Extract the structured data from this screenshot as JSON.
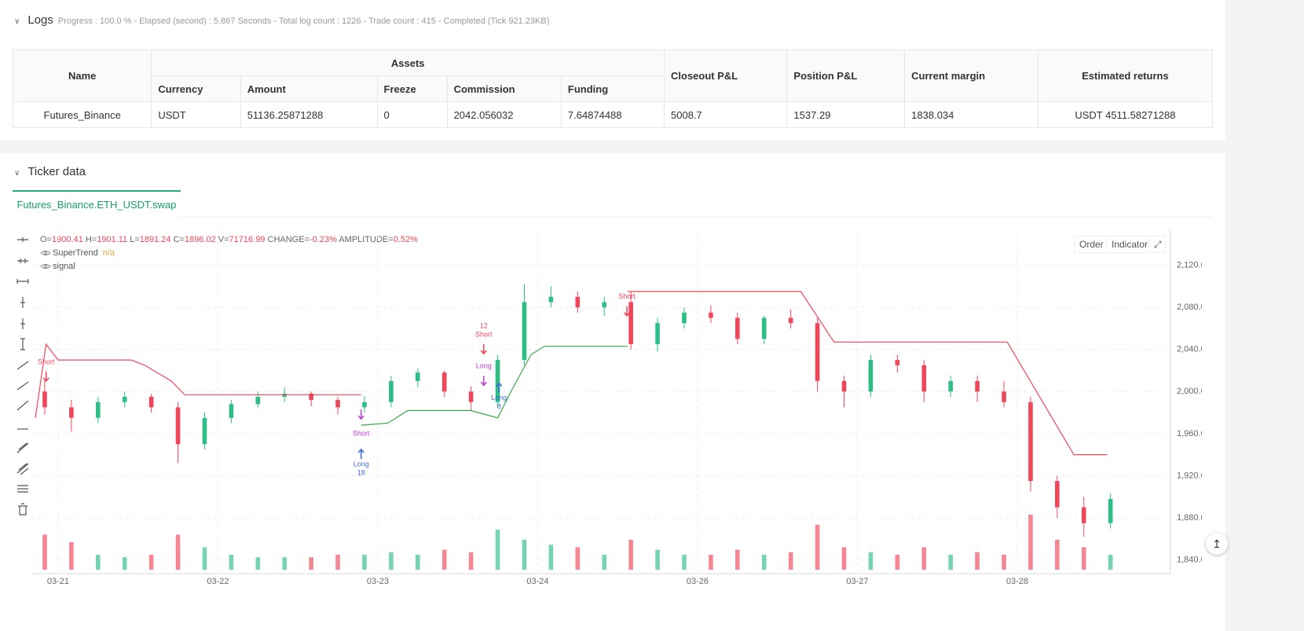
{
  "logs": {
    "title": "Logs",
    "status": "Progress : 100.0 % - Elapsed (second) : 5.867  Seconds - Total log count : 1226 - Trade count : 415 - Completed (Tick 921.23KB)"
  },
  "table": {
    "header_top": [
      "Name",
      "Assets",
      "Closeout P&L",
      "Position P&L",
      "Current margin",
      "Estimated returns"
    ],
    "header_sub": [
      "Currency",
      "Amount",
      "Freeze",
      "Commission",
      "Funding"
    ],
    "rows": [
      [
        "Futures_Binance",
        "USDT",
        "51136.25871288",
        "0",
        "2042.056032",
        "7.64874488",
        "5008.7",
        "1537.29",
        "1838.034",
        "USDT 4511.58271288"
      ]
    ]
  },
  "ticker": {
    "title": "Ticker data",
    "tab": "Futures_Binance.ETH_USDT.swap",
    "buttons": [
      "Order",
      "Indicator"
    ]
  },
  "chart_data": {
    "type": "candlestick",
    "ohlc_header": [
      [
        "O=",
        "1900.41"
      ],
      [
        "H=",
        "1901.11"
      ],
      [
        "L=",
        "1891.24"
      ],
      [
        "C=",
        "1896.02"
      ],
      [
        "V=",
        "71716.99"
      ],
      [
        "CHANGE=",
        "-0.23%"
      ],
      [
        "AMPLITUDE=",
        "0.52%"
      ]
    ],
    "legend": [
      {
        "name": "SuperTrend",
        "value": "n/a"
      },
      {
        "name": "signal"
      }
    ],
    "up_color": "#2dbd85",
    "down_color": "#f0465a",
    "grid": true,
    "xlim": [
      -4,
      167
    ],
    "ylim": [
      1827,
      2154
    ],
    "xticks": [
      {
        "value": 0,
        "label": "03-21"
      },
      {
        "value": 24,
        "label": "03-22"
      },
      {
        "value": 48,
        "label": "03-23"
      },
      {
        "value": 72,
        "label": "03-24"
      },
      {
        "value": 96,
        "label": "03-26"
      },
      {
        "value": 120,
        "label": "03-27"
      },
      {
        "value": 144,
        "label": "03-28"
      }
    ],
    "yticks": [
      {
        "value": 1840,
        "label": "1,840.00"
      },
      {
        "value": 1880,
        "label": "1,880.00"
      },
      {
        "value": 1920,
        "label": "1,920.00"
      },
      {
        "value": 1960,
        "label": "1,960.00"
      },
      {
        "value": 2000,
        "label": "2,000.00"
      },
      {
        "value": 2040,
        "label": "2,040.00"
      },
      {
        "value": 2080,
        "label": "2,080.00"
      },
      {
        "value": 2120,
        "label": "2,120.00"
      }
    ],
    "candles": {
      "x": [
        -2,
        2,
        6,
        10,
        14,
        18,
        22,
        26,
        30,
        34,
        38,
        42,
        46,
        50,
        54,
        58,
        62,
        66,
        70,
        74,
        78,
        82,
        86,
        90,
        94,
        98,
        102,
        106,
        110,
        114,
        118,
        122,
        126,
        130,
        134,
        138,
        142,
        146,
        150,
        154,
        158
      ],
      "open": [
        2000,
        1985,
        1975,
        1990,
        1995,
        1985,
        1950,
        1975,
        1988,
        1995,
        1998,
        1992,
        1985,
        1990,
        2010,
        2018,
        2000,
        1990,
        2030,
        2085,
        2090,
        2080,
        2085,
        2045,
        2065,
        2075,
        2070,
        2050,
        2070,
        2065,
        2010,
        2000,
        2030,
        2025,
        2000,
        2010,
        2000,
        1990,
        1915,
        1890,
        1875
      ],
      "high": [
        2012,
        1992,
        1995,
        2000,
        1998,
        1990,
        1980,
        1992,
        2000,
        2004,
        2000,
        1995,
        1996,
        2015,
        2022,
        2020,
        2005,
        2035,
        2102,
        2100,
        2095,
        2090,
        2095,
        2070,
        2080,
        2082,
        2075,
        2072,
        2078,
        2070,
        2015,
        2035,
        2035,
        2030,
        2015,
        2015,
        2010,
        1995,
        1920,
        1900,
        1903
      ],
      "low": [
        1978,
        1962,
        1970,
        1985,
        1980,
        1932,
        1945,
        1970,
        1985,
        1990,
        1986,
        1978,
        1980,
        1985,
        2004,
        1995,
        1982,
        1985,
        2025,
        2080,
        2075,
        2072,
        2040,
        2038,
        2060,
        2065,
        2045,
        2045,
        2060,
        2000,
        1985,
        1995,
        2018,
        1990,
        1995,
        1990,
        1985,
        1905,
        1880,
        1862,
        1870
      ],
      "close": [
        1985,
        1975,
        1990,
        1995,
        1985,
        1950,
        1975,
        1988,
        1995,
        1998,
        1992,
        1985,
        1990,
        2010,
        2018,
        2000,
        1990,
        2030,
        2085,
        2090,
        2080,
        2085,
        2045,
        2065,
        2075,
        2070,
        2050,
        2070,
        2065,
        2010,
        2000,
        2030,
        2025,
        2000,
        2010,
        2000,
        1990,
        1915,
        1890,
        1875,
        1898
      ],
      "volume": [
        14000,
        11000,
        6000,
        5000,
        6000,
        14000,
        9000,
        6000,
        5000,
        5000,
        5000,
        6000,
        6000,
        7000,
        6000,
        8000,
        7000,
        16000,
        12000,
        10000,
        9000,
        6000,
        12000,
        8000,
        6000,
        6000,
        8000,
        6000,
        7000,
        18000,
        9000,
        7000,
        6000,
        9000,
        6000,
        7000,
        6000,
        22000,
        12000,
        9000,
        6000
      ]
    },
    "lines": [
      {
        "color": "#f0465a",
        "x": [
          -3.4,
          -1.8,
          0,
          11,
          13,
          17,
          19,
          45.5,
          46,
          85.5,
          111.5,
          116.5,
          142.5,
          152.5,
          157.5
        ],
        "values": [
          1975,
          2045,
          2030,
          2030,
          2025,
          2010,
          1997,
          1997,
          null,
          2095,
          2095,
          2047,
          2047,
          1940,
          1940
        ]
      },
      {
        "color": "#3aa845",
        "x": [
          45.5,
          49.5,
          52.5,
          61.9,
          66,
          68,
          71,
          73,
          85.5
        ],
        "values": [
          1968,
          1970,
          1982,
          1982,
          1975,
          2000,
          2035,
          2043,
          2043
        ]
      }
    ],
    "annotations": [
      {
        "lines": [
          "Short"
        ],
        "x": -1.8,
        "y": 2010,
        "color": "#f0465a",
        "arrow": "down",
        "text_pos": "above"
      },
      {
        "lines": [
          "Short"
        ],
        "x": 45.5,
        "y": 1974,
        "color": "#c03fd8",
        "arrow": "down",
        "text_pos": "below"
      },
      {
        "lines": [
          "Long",
          "18"
        ],
        "x": 45.5,
        "y": 1945,
        "color": "#3f6fd8",
        "arrow": "up",
        "text_pos": "below"
      },
      {
        "lines": [
          "12",
          "Short"
        ],
        "x": 63.9,
        "y": 2036,
        "color": "#f0465a",
        "arrow": "down",
        "text_pos": "above"
      },
      {
        "lines": [
          "Long"
        ],
        "x": 63.9,
        "y": 2006,
        "color": "#c03fd8",
        "arrow": "down",
        "text_pos": "above"
      },
      {
        "lines": [
          "Long",
          "8"
        ],
        "x": 66.2,
        "y": 2008,
        "color": "#3f6fd8",
        "arrow": "up",
        "text_pos": "below"
      },
      {
        "lines": [
          "Short"
        ],
        "x": 85.4,
        "y": 2072,
        "color": "#f0465a",
        "arrow": "down",
        "text_pos": "above"
      }
    ]
  }
}
